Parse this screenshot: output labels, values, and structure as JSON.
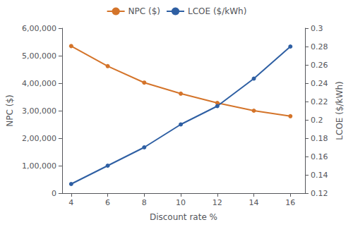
{
  "chart_data": {
    "type": "line",
    "xlabel": "Discount rate %",
    "ylabel": "NPC ($)",
    "y2label": "LCOE ($/kWh)",
    "x": [
      4,
      6,
      8,
      10,
      12,
      14,
      16
    ],
    "series": [
      {
        "name": "NPC ($)",
        "color": "#d4742a",
        "marker": "circle",
        "values": [
          535000,
          462000,
          402000,
          362000,
          328000,
          300000,
          280000
        ]
      },
      {
        "name": "LCOE ($/kWh)",
        "color": "#2e5fa3",
        "marker": "circle",
        "axis": "y2",
        "values": [
          0.13,
          0.15,
          0.17,
          0.195,
          0.215,
          0.245,
          0.28
        ]
      }
    ],
    "xlim": [
      3.5,
      16.8
    ],
    "xticks": [
      4,
      6,
      8,
      10,
      12,
      14,
      16
    ],
    "ylim": [
      0,
      600000
    ],
    "yticks": [
      0,
      {
        "value": 100000,
        "label": "1,00,000"
      },
      {
        "value": 200000,
        "label": "2,00,000"
      },
      {
        "value": 300000,
        "label": "3,00,000"
      },
      {
        "value": 400000,
        "label": "4,00,000"
      },
      {
        "value": 500000,
        "label": "5,00,000"
      },
      {
        "value": 600000,
        "label": "6,00,000"
      }
    ],
    "y2lim": [
      0.12,
      0.3
    ],
    "y2ticks": [
      0.12,
      0.14,
      0.16,
      0.18,
      0.2,
      0.22,
      0.24,
      0.26,
      0.28,
      0.3
    ],
    "grid": false,
    "legend": "top"
  }
}
